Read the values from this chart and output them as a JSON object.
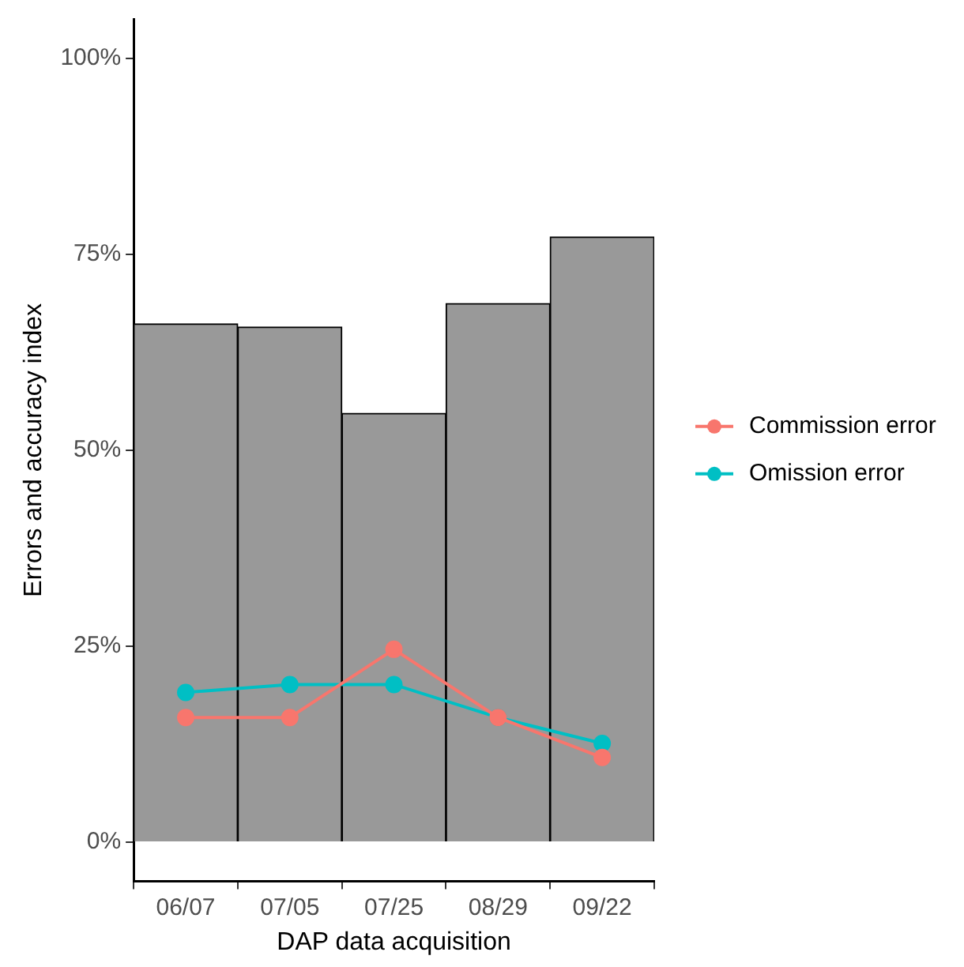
{
  "chart_data": {
    "type": "bar",
    "xlabel": "DAP data acquisition",
    "ylabel": "Errors and accuracy index",
    "categories": [
      "06/07",
      "07/05",
      "07/25",
      "08/29",
      "09/22"
    ],
    "series": [
      {
        "type": "bar",
        "color": "#999999",
        "values": [
          66.1,
          65.7,
          54.7,
          68.7,
          77.2
        ]
      },
      {
        "type": "line",
        "name": "Commission error",
        "color": "#f8766d",
        "values": [
          15.9,
          15.9,
          24.6,
          15.9,
          10.8
        ]
      },
      {
        "type": "line",
        "name": "Omission error",
        "color": "#00bfc4",
        "values": [
          19.1,
          20.1,
          20.1,
          15.9,
          12.6
        ]
      }
    ],
    "ylim": [
      -5,
      105
    ],
    "yticks": [
      {
        "value": 0,
        "label": "0%"
      },
      {
        "value": 25,
        "label": "25%"
      },
      {
        "value": 50,
        "label": "50%"
      },
      {
        "value": 75,
        "label": "75%"
      },
      {
        "value": 100,
        "label": "100%"
      }
    ],
    "grid": false,
    "legend": "right",
    "marker": "circle",
    "line_style": "solid"
  }
}
